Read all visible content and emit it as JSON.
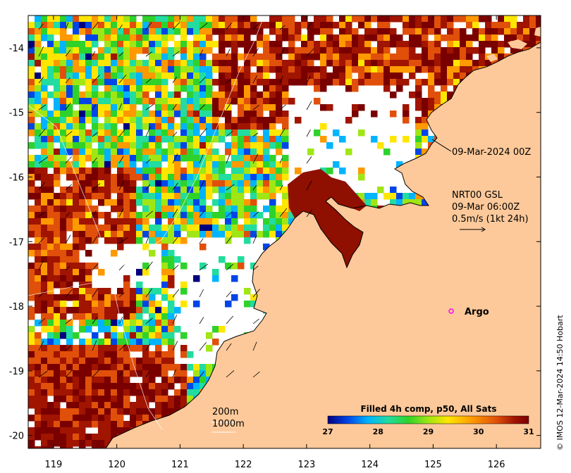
{
  "map": {
    "lon_ticks": [
      "119",
      "120",
      "121",
      "122",
      "123",
      "124",
      "125",
      "126"
    ],
    "lat_ticks": [
      "-14",
      "-15",
      "-16",
      "-17",
      "-18",
      "-19",
      "-20"
    ],
    "lon_range": [
      118.6,
      126.7
    ],
    "lat_range": [
      -20.2,
      -13.5
    ],
    "land_color": "#fdc99a",
    "ocean_color": "#ffffff"
  },
  "annotations": {
    "track_time": "09-Mar-2024 00Z",
    "nrt_line1": "NRT00 GSL",
    "nrt_line2": "09-Mar 06:00Z",
    "velocity_scale": "0.5m/s (1kt 24h)",
    "argo": "Argo",
    "contour_200": "200m",
    "contour_1000": "1000m",
    "credit": "© IMOS 12-Mar-2024 14:50 Hobart"
  },
  "colorbar": {
    "title": "Filled 4h comp, p50, All Sats",
    "ticks": [
      "27",
      "28",
      "29",
      "30",
      "31"
    ],
    "range": [
      27,
      31
    ],
    "stops": [
      "#00007f",
      "#0046e6",
      "#00b4ff",
      "#22dca0",
      "#2fd22a",
      "#a0e614",
      "#ffe600",
      "#ff9900",
      "#e0500a",
      "#a01400",
      "#7a0000"
    ]
  },
  "argo_color": "#ff00ff"
}
